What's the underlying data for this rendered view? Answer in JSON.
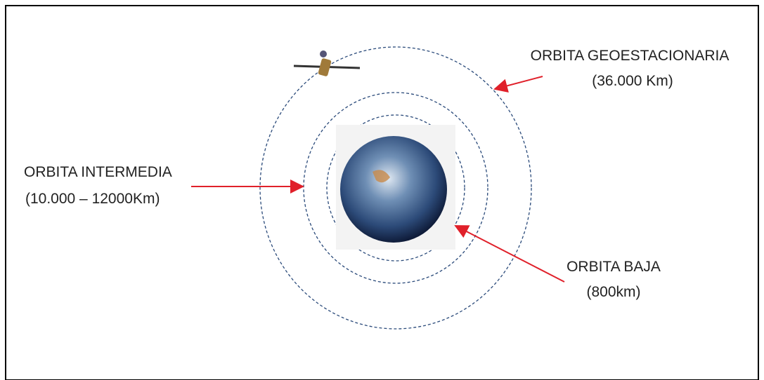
{
  "labels": [
    {
      "name": "ORBITA GEOESTACIONARIA",
      "detail": "(36.000 Km)"
    },
    {
      "name": "ORBITA INTERMEDIA",
      "detail": "(10.000 – 12000Km)"
    },
    {
      "name": "ORBITA BAJA",
      "detail": "(800km)"
    }
  ]
}
